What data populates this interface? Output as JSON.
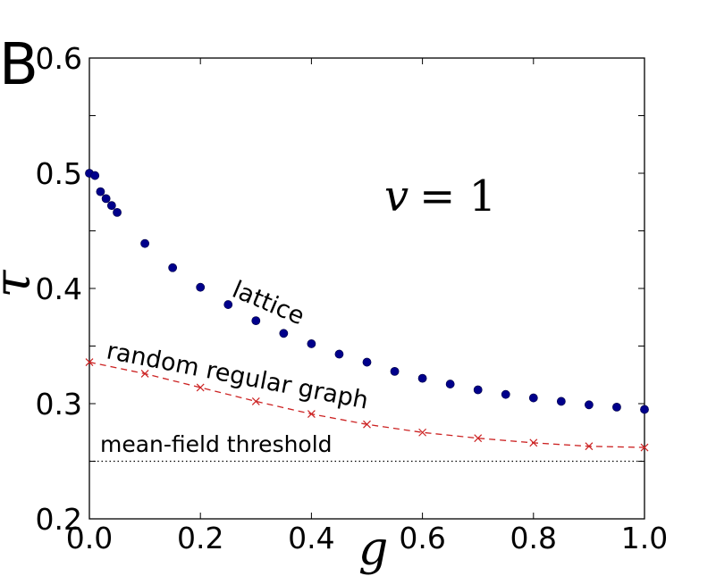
{
  "chart_data": {
    "type": "scatter",
    "panel_label": "B",
    "xlabel": "g",
    "ylabel": "τ",
    "annotation": "v = 1",
    "xlim": [
      0.0,
      1.0
    ],
    "ylim": [
      0.2,
      0.6
    ],
    "x_ticks": [
      0.0,
      0.2,
      0.4,
      0.6,
      0.8,
      1.0
    ],
    "x_tick_labels": [
      "0.0",
      "0.2",
      "0.4",
      "0.6",
      "0.8",
      "1.0"
    ],
    "y_ticks": [
      0.2,
      0.3,
      0.4,
      0.5,
      0.6
    ],
    "y_tick_labels": [
      "0.2",
      "0.3",
      "0.4",
      "0.5",
      "0.6"
    ],
    "grid": false,
    "series": [
      {
        "name": "lattice",
        "label": "lattice",
        "style": "markers",
        "marker": "circle",
        "color": "#00008b",
        "x": [
          0.0,
          0.01,
          0.02,
          0.03,
          0.04,
          0.05,
          0.1,
          0.15,
          0.2,
          0.25,
          0.3,
          0.35,
          0.4,
          0.45,
          0.5,
          0.55,
          0.6,
          0.65,
          0.7,
          0.75,
          0.8,
          0.85,
          0.9,
          0.95,
          1.0
        ],
        "y": [
          0.5,
          0.498,
          0.484,
          0.478,
          0.472,
          0.466,
          0.439,
          0.418,
          0.401,
          0.386,
          0.372,
          0.361,
          0.352,
          0.343,
          0.336,
          0.328,
          0.322,
          0.317,
          0.312,
          0.308,
          0.305,
          0.302,
          0.299,
          0.297,
          0.295
        ]
      },
      {
        "name": "random regular graph",
        "label": "random regular graph",
        "style": "dashed line with x markers",
        "marker": "x",
        "color": "#cc2222",
        "x": [
          0.0,
          0.1,
          0.2,
          0.3,
          0.4,
          0.5,
          0.6,
          0.7,
          0.8,
          0.9,
          1.0
        ],
        "y": [
          0.336,
          0.326,
          0.314,
          0.302,
          0.291,
          0.282,
          0.275,
          0.27,
          0.266,
          0.263,
          0.262
        ],
        "curve_y": [
          0.336,
          0.326,
          0.314,
          0.302,
          0.291,
          0.282,
          0.275,
          0.27,
          0.266,
          0.263,
          0.262
        ]
      },
      {
        "name": "mean-field threshold",
        "label": "mean-field threshold",
        "style": "dotted line",
        "color": "#000000",
        "x": [
          0.0,
          1.0
        ],
        "y": [
          0.25,
          0.25
        ]
      }
    ]
  }
}
